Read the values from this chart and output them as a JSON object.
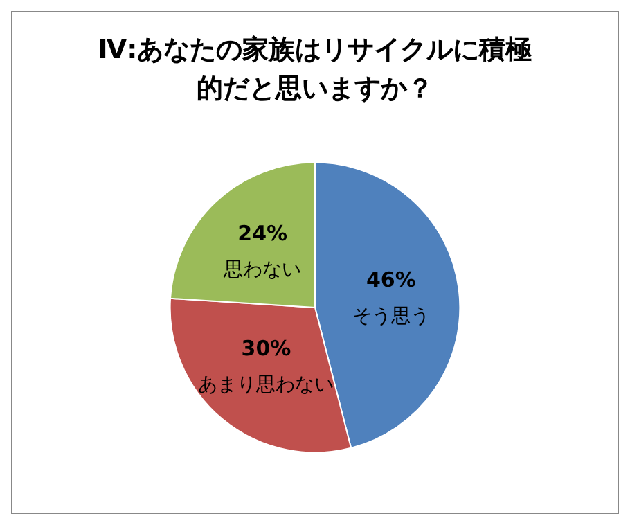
{
  "chart_data": {
    "type": "pie",
    "title": "Ⅳ:あなたの家族はリサイクルに積極的だと思いますか？",
    "categories": [
      "そう思う",
      "あまり思わない",
      "思わない"
    ],
    "values": [
      46,
      30,
      24
    ],
    "colors": [
      "#4f81bd",
      "#c0504d",
      "#9bbb59"
    ],
    "value_labels": [
      "46%",
      "30%",
      "24%"
    ]
  }
}
